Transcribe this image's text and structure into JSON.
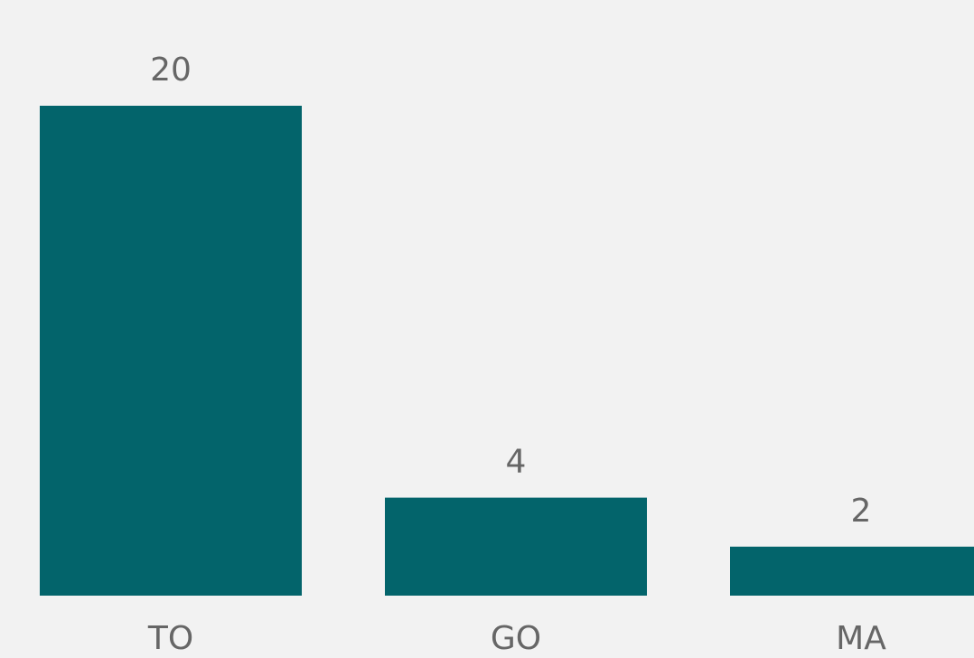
{
  "chart_data": {
    "type": "bar",
    "categories": [
      "TO",
      "GO",
      "MA"
    ],
    "values": [
      20,
      4,
      2
    ],
    "ylim": [
      0,
      20
    ],
    "grid": false,
    "legend": "none",
    "colors": {
      "bar": "#03646b",
      "background": "#f2f2f2",
      "text": "#666666"
    }
  }
}
